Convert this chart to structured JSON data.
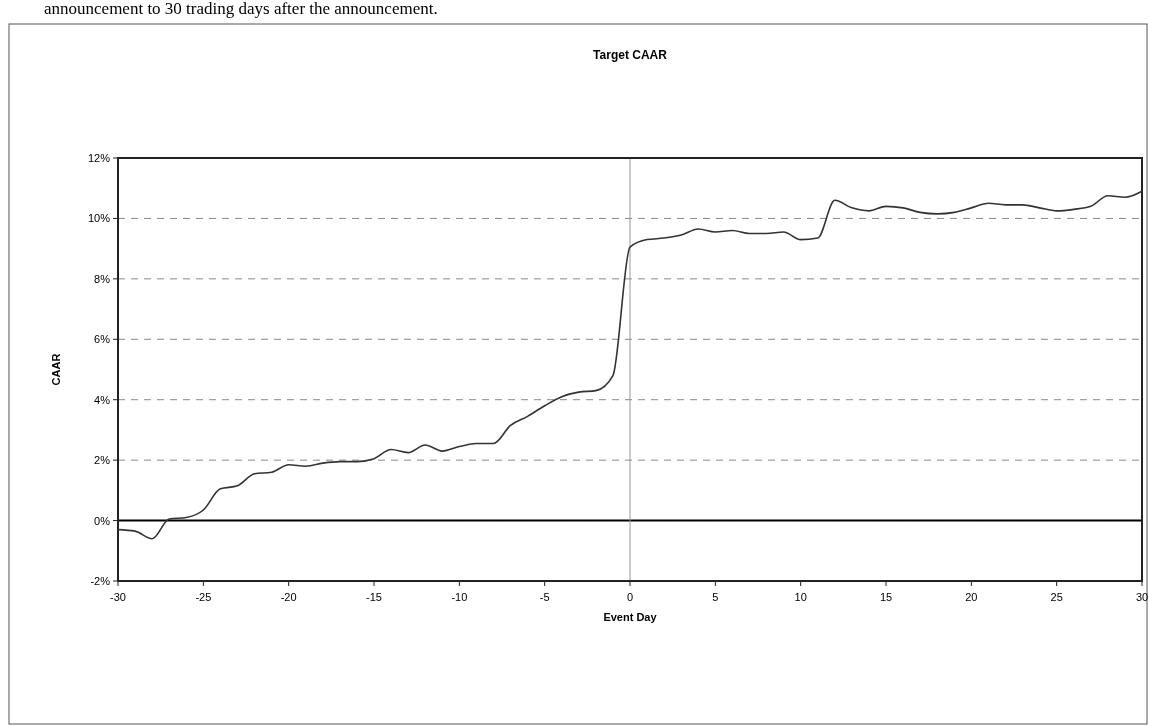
{
  "chart_data": {
    "type": "line",
    "title": "Target CAAR",
    "xlabel": "Event Day",
    "ylabel": "CAAR",
    "annotations": [
      "announcement to 30 trading days after the announcement."
    ],
    "x": [
      -30,
      -29,
      -28,
      -27,
      -26,
      -25,
      -24,
      -23,
      -22,
      -21,
      -20,
      -19,
      -18,
      -17,
      -16,
      -15,
      -14,
      -13,
      -12,
      -11,
      -10,
      -9,
      -8,
      -7,
      -6,
      -5,
      -4,
      -3,
      -2,
      -1,
      0,
      1,
      2,
      3,
      4,
      5,
      6,
      7,
      8,
      9,
      10,
      11,
      12,
      13,
      14,
      15,
      16,
      17,
      18,
      19,
      20,
      21,
      22,
      23,
      24,
      25,
      26,
      27,
      28,
      29,
      30
    ],
    "series": [
      {
        "color": "#333333",
        "values": [
          -0.3,
          -0.35,
          -0.6,
          0.05,
          0.1,
          0.35,
          1.05,
          1.15,
          1.55,
          1.6,
          1.85,
          1.8,
          1.9,
          1.95,
          1.95,
          2.05,
          2.35,
          2.25,
          2.5,
          2.3,
          2.45,
          2.55,
          2.55,
          3.15,
          3.45,
          3.8,
          4.1,
          4.25,
          4.3,
          4.8,
          9.05,
          9.3,
          9.35,
          9.45,
          9.65,
          9.55,
          9.6,
          9.5,
          9.5,
          9.55,
          9.3,
          9.35,
          10.6,
          10.35,
          10.25,
          10.4,
          10.35,
          10.2,
          10.15,
          10.2,
          10.35,
          10.5,
          10.45,
          10.45,
          10.35,
          10.25,
          10.3,
          10.4,
          10.75,
          10.7,
          10.9
        ]
      }
    ],
    "xlim": [
      -30,
      30
    ],
    "xticks": [
      -30,
      -25,
      -20,
      -15,
      -10,
      -5,
      0,
      5,
      10,
      15,
      20,
      25,
      30
    ],
    "ylim": [
      -2,
      12
    ],
    "yticks": [
      {
        "value": -2,
        "label": "-2%"
      },
      {
        "value": 0,
        "label": "0%"
      },
      {
        "value": 2,
        "label": "2%"
      },
      {
        "value": 4,
        "label": "4%"
      },
      {
        "value": 6,
        "label": "6%"
      },
      {
        "value": 8,
        "label": "8%"
      },
      {
        "value": 10,
        "label": "10%"
      },
      {
        "value": 12,
        "label": "12%"
      }
    ],
    "grid": "y",
    "marker": "none",
    "line_style": "solid",
    "ref_lines": [
      {
        "axis": "y",
        "value": 0,
        "color": "#000000"
      },
      {
        "axis": "x",
        "value": 0,
        "color": "#999999"
      }
    ]
  }
}
